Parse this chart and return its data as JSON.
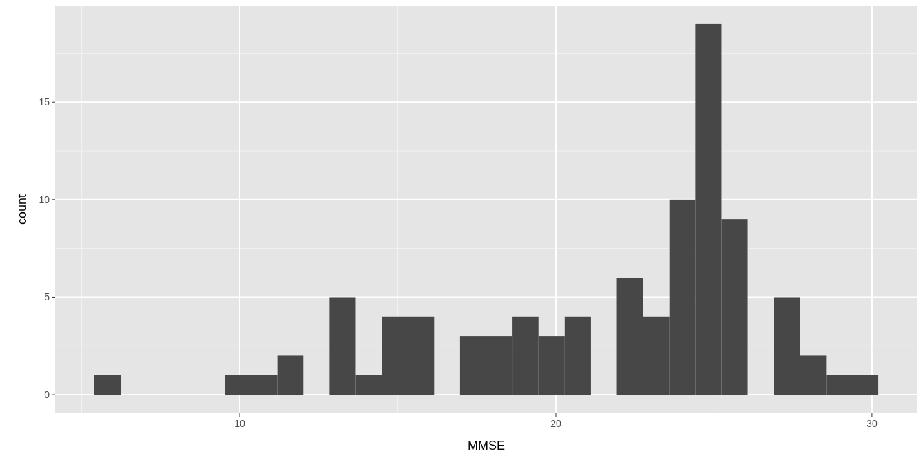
{
  "chart_data": {
    "type": "histogram",
    "xlabel": "MMSE",
    "ylabel": "count",
    "color": "#474747",
    "bins": [
      5.4,
      6.23,
      7.05,
      7.88,
      8.71,
      9.53,
      10.36,
      11.19,
      12.01,
      12.84,
      13.67,
      14.49,
      15.32,
      16.15,
      16.97,
      17.8,
      18.63,
      19.45,
      20.28,
      21.11,
      21.93,
      22.76,
      23.59,
      24.41,
      25.24,
      26.07,
      26.89,
      27.72,
      28.55,
      29.37,
      30.2
    ],
    "values": [
      1,
      0,
      0,
      0,
      0,
      1,
      1,
      2,
      0,
      5,
      1,
      4,
      4,
      0,
      3,
      3,
      4,
      3,
      4,
      0,
      6,
      4,
      10,
      19,
      9,
      0,
      5,
      2,
      1,
      1
    ],
    "xlim": [
      4.16,
      31.44
    ],
    "ylim": [
      -0.95,
      19.95
    ],
    "xticks": [
      10,
      20,
      30
    ],
    "yticks": [
      0,
      5,
      10,
      15
    ],
    "grid": true
  }
}
